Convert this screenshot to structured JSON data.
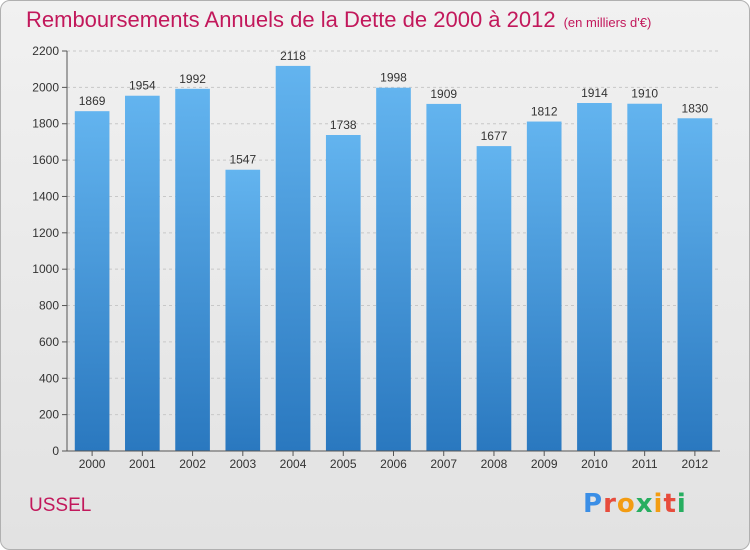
{
  "title": "Remboursements Annuels de la Dette de 2000 à 2012",
  "subtitle": "(en milliers d'€)",
  "place": "USSEL",
  "logo": {
    "text": "Proxiti",
    "colors": [
      "#3a8ee6",
      "#e74c3c",
      "#f39c12",
      "#27ae60",
      "#f39c12",
      "#e74c3c",
      "#27ae60"
    ]
  },
  "colors": {
    "title": "#c2185b",
    "bar_top": "#63b4ef",
    "bar_bottom": "#2a78bf",
    "grid": "#c8c8c8"
  },
  "chart_data": {
    "type": "bar",
    "title": "Remboursements Annuels de la Dette de 2000 à 2012",
    "subtitle": "(en milliers d'€)",
    "categories": [
      "2000",
      "2001",
      "2002",
      "2003",
      "2004",
      "2005",
      "2006",
      "2007",
      "2008",
      "2009",
      "2010",
      "2011",
      "2012"
    ],
    "values": [
      1869,
      1954,
      1992,
      1547,
      2118,
      1738,
      1998,
      1909,
      1677,
      1812,
      1914,
      1910,
      1830
    ],
    "yticks": [
      0,
      200,
      400,
      600,
      800,
      1000,
      1200,
      1400,
      1600,
      1800,
      2000,
      2200
    ],
    "ylim": [
      0,
      2200
    ],
    "grid": true,
    "data_labels": true
  }
}
